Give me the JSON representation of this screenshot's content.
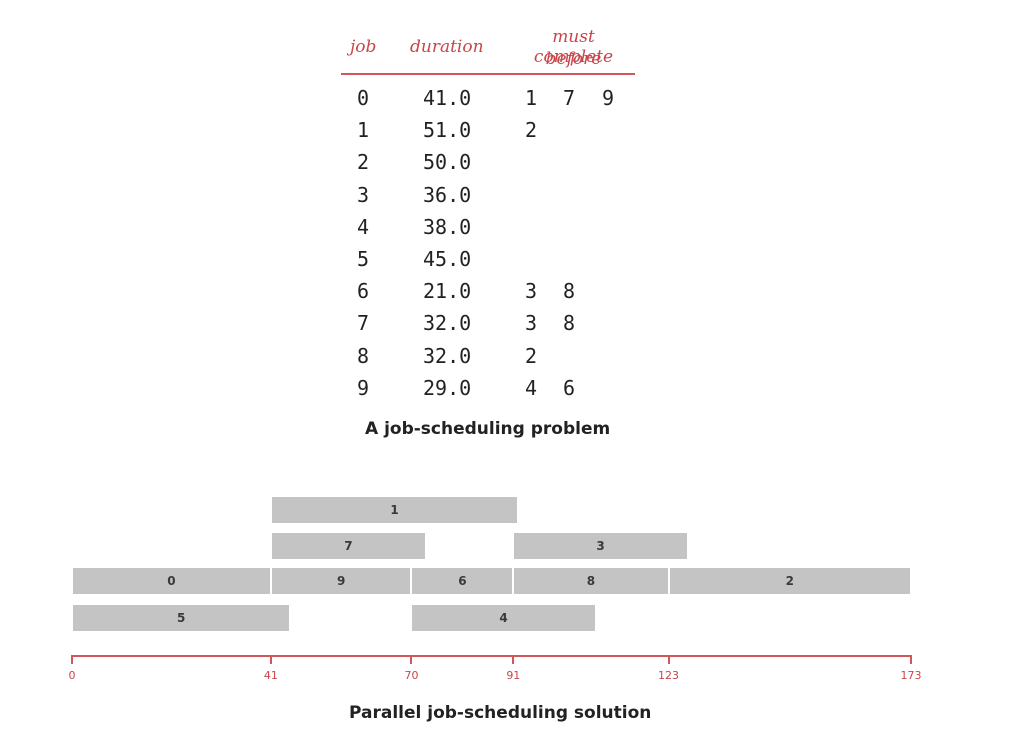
{
  "table": {
    "headers": {
      "job": "job",
      "duration": "duration",
      "must_line1": "must complete",
      "must_line2": "before"
    },
    "rows": [
      {
        "job": "0",
        "duration": "41.0",
        "before": [
          "1",
          "7",
          "9"
        ]
      },
      {
        "job": "1",
        "duration": "51.0",
        "before": [
          "2"
        ]
      },
      {
        "job": "2",
        "duration": "50.0",
        "before": []
      },
      {
        "job": "3",
        "duration": "36.0",
        "before": []
      },
      {
        "job": "4",
        "duration": "38.0",
        "before": []
      },
      {
        "job": "5",
        "duration": "45.0",
        "before": []
      },
      {
        "job": "6",
        "duration": "21.0",
        "before": [
          "3",
          "8"
        ]
      },
      {
        "job": "7",
        "duration": "32.0",
        "before": [
          "3",
          "8"
        ]
      },
      {
        "job": "8",
        "duration": "32.0",
        "before": [
          "2"
        ]
      },
      {
        "job": "9",
        "duration": "29.0",
        "before": [
          "4",
          "6"
        ]
      }
    ],
    "caption": "A job-scheduling problem"
  },
  "schedule": {
    "jobs": [
      {
        "job": "1",
        "start": 41,
        "end": 92
      },
      {
        "job": "7",
        "start": 41,
        "end": 73
      },
      {
        "job": "3",
        "start": 91,
        "end": 127
      },
      {
        "job": "0",
        "start": 0,
        "end": 41
      },
      {
        "job": "9",
        "start": 41,
        "end": 70
      },
      {
        "job": "6",
        "start": 70,
        "end": 91
      },
      {
        "job": "8",
        "start": 91,
        "end": 123
      },
      {
        "job": "2",
        "start": 123,
        "end": 173
      },
      {
        "job": "5",
        "start": 0,
        "end": 45
      },
      {
        "job": "4",
        "start": 70,
        "end": 108
      }
    ],
    "axis_ticks": [
      {
        "value": 0,
        "label": "0"
      },
      {
        "value": 41,
        "label": "41"
      },
      {
        "value": 70,
        "label": "70"
      },
      {
        "value": 91,
        "label": "91"
      },
      {
        "value": 123,
        "label": "123"
      },
      {
        "value": 173,
        "label": "173"
      }
    ],
    "axis_range": [
      0,
      173
    ],
    "caption": "Parallel job-scheduling solution"
  },
  "colors": {
    "accent": "#c8454a",
    "bar": "#c4c4c4"
  }
}
